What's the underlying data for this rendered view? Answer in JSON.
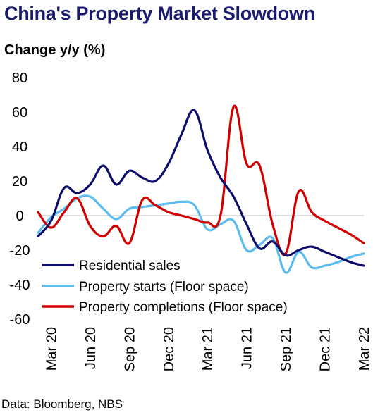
{
  "title": "China's Property Market Slowdown",
  "source": "Data: Bloomberg, NBS",
  "chart_data": {
    "type": "line",
    "title": "China's Property Market Slowdown",
    "ylabel": "Change y/y (%)",
    "xlabel": "",
    "ylim": [
      -60,
      80
    ],
    "yticks": [
      80,
      60,
      40,
      20,
      0,
      -20,
      -40,
      -60
    ],
    "x_tick_labels": [
      "Mar 20",
      "Jun 20",
      "Sep 20",
      "Dec 20",
      "Mar 21",
      "Jun 21",
      "Sep 21",
      "Dec 21",
      "Mar 22"
    ],
    "x": [
      "Feb 20",
      "Mar 20",
      "Apr 20",
      "May 20",
      "Jun 20",
      "Jul 20",
      "Aug 20",
      "Sep 20",
      "Oct 20",
      "Nov 20",
      "Dec 20",
      "Jan 21",
      "Feb 21",
      "Mar 21",
      "Apr 21",
      "May 21",
      "Jun 21",
      "Jul 21",
      "Aug 21",
      "Sep 21",
      "Oct 21",
      "Nov 21",
      "Dec 21",
      "Jan 22",
      "Feb 22",
      "Mar 22"
    ],
    "grid": false,
    "legend_position": "bottom-left",
    "series": [
      {
        "name": "Residential sales",
        "color": "#0d0d6b",
        "values": [
          -12,
          -3,
          16,
          13,
          18,
          29,
          18,
          26,
          22,
          20,
          30,
          47,
          61,
          38,
          22,
          11,
          -5,
          -19,
          -15,
          -23,
          -20,
          -18,
          -21,
          -24,
          -27,
          -29
        ]
      },
      {
        "name": "Property starts (Floor space)",
        "color": "#5bbcf0",
        "values": [
          -10,
          -1,
          4,
          10,
          11,
          4,
          -2,
          4,
          5,
          6,
          7,
          8,
          6,
          -8,
          -5,
          -3,
          -20,
          -17,
          -13,
          -33,
          -21,
          -30,
          -29,
          -27,
          -24,
          -22
        ]
      },
      {
        "name": "Property completions (Floor space)",
        "color": "#d00000",
        "values": [
          2,
          -7,
          2,
          10,
          -6,
          -12,
          -6,
          -16,
          9,
          6,
          2,
          0,
          -2,
          -4,
          0,
          63,
          30,
          29,
          -5,
          -22,
          14,
          2,
          -3,
          -7,
          -11,
          -16
        ]
      }
    ]
  }
}
